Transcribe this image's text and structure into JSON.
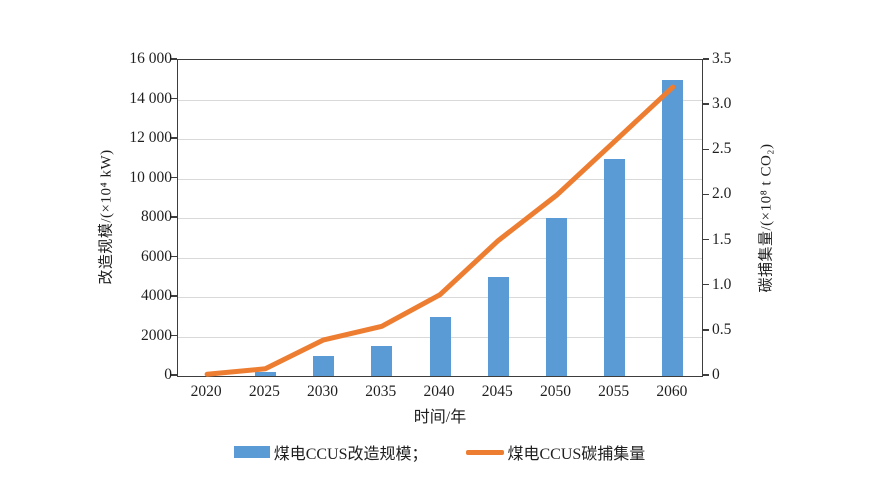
{
  "chart_data": {
    "type": "bar",
    "subtype": "bar-line-combo",
    "categories": [
      "2020",
      "2025",
      "2030",
      "2035",
      "2040",
      "2045",
      "2050",
      "2055",
      "2060"
    ],
    "series": [
      {
        "name": "煤电CCUS改造规模",
        "kind": "bar",
        "axis": "left",
        "color": "#5b9bd5",
        "values": [
          0,
          200,
          1000,
          1500,
          3000,
          5000,
          8000,
          11000,
          15000
        ]
      },
      {
        "name": "煤电CCUS碳捕集量",
        "kind": "line",
        "axis": "right",
        "color": "#ed7d31",
        "values": [
          0.02,
          0.08,
          0.4,
          0.55,
          0.9,
          1.5,
          2.0,
          2.6,
          3.2
        ]
      }
    ],
    "xlabel": "时间/年",
    "ylabel_left": "改造规模/(×10⁴ kW)",
    "ylabel_right": "碳捕集量/(×10⁸ t CO₂)",
    "left_axis": {
      "min": 0,
      "max": 16000,
      "step": 2000,
      "tick_labels": [
        "0",
        "2000",
        "4000",
        "6000",
        "8000",
        "10 000",
        "12 000",
        "14 000",
        "16 000"
      ]
    },
    "right_axis": {
      "min": 0,
      "max": 3.5,
      "step": 0.5,
      "tick_labels": [
        "0",
        "0.5",
        "1.0",
        "1.5",
        "2.0",
        "2.5",
        "3.0",
        "3.5"
      ]
    },
    "grid": true,
    "grid_color": "#d9d9d9",
    "axis_color": "#3d3d3d",
    "legend_position": "bottom",
    "legend": [
      {
        "label": "煤电CCUS改造规模；",
        "swatch": "bar"
      },
      {
        "label": "煤电CCUS碳捕集量",
        "swatch": "line"
      }
    ]
  }
}
